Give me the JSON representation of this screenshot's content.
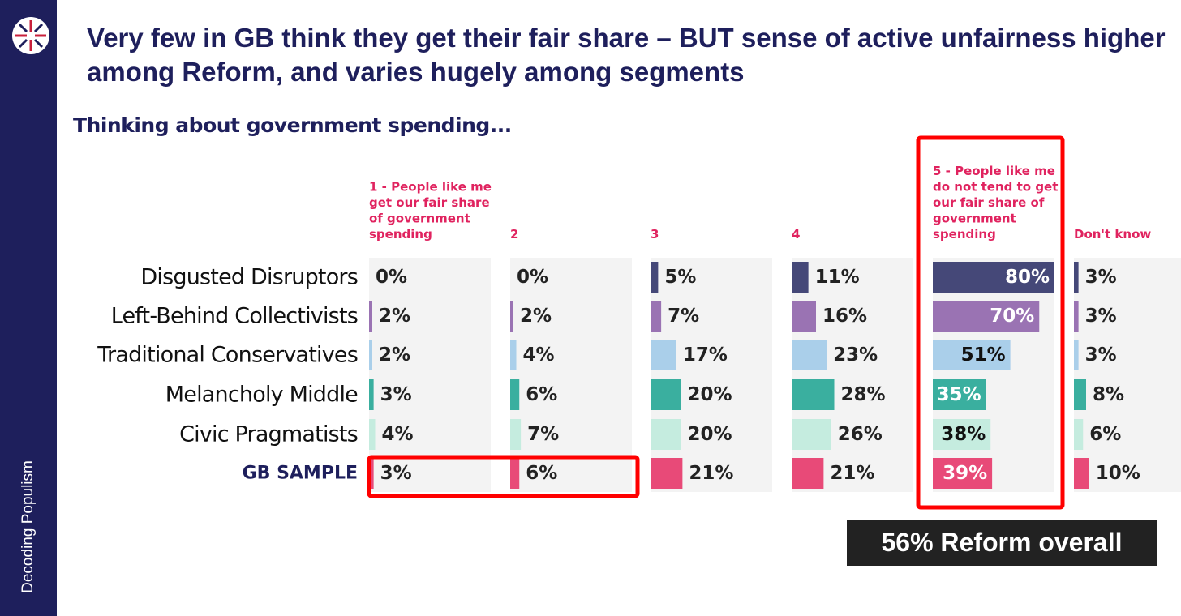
{
  "page": {
    "title": "Very few in GB think they get their fair share – BUT sense of active unfairness higher among Reform, and varies hugely among segments",
    "sidebar_label": "Decoding Populism",
    "subtitle": "Thinking about government spending...",
    "callout": "56% Reform overall"
  },
  "chart_data": {
    "type": "bar",
    "orientation": "horizontal",
    "layout": "small-multiples",
    "title": "Thinking about government spending...",
    "columns": [
      [
        "1 - People like me",
        "get our fair share",
        "of government",
        "spending"
      ],
      [
        "2"
      ],
      [
        "3"
      ],
      [
        "4"
      ],
      [
        "5 - People like me",
        "do not tend to get",
        "our fair share of",
        "government",
        "spending"
      ],
      [
        "Don't know"
      ]
    ],
    "rows": [
      "Disgusted Disruptors",
      "Left-Behind Collectivists",
      "Traditional Conservatives",
      "Melancholy Middle",
      "Civic Pragmatists",
      "GB SAMPLE"
    ],
    "values": [
      [
        0,
        0,
        5,
        11,
        80,
        3
      ],
      [
        2,
        2,
        7,
        16,
        70,
        3
      ],
      [
        2,
        4,
        17,
        23,
        51,
        3
      ],
      [
        3,
        6,
        20,
        28,
        35,
        8
      ],
      [
        4,
        7,
        20,
        26,
        38,
        6
      ],
      [
        3,
        6,
        21,
        21,
        39,
        10
      ]
    ],
    "labels": [
      [
        "0%",
        "0%",
        "5%",
        "11%",
        "80%",
        "3%"
      ],
      [
        "2%",
        "2%",
        "7%",
        "16%",
        "70%",
        "3%"
      ],
      [
        "2%",
        "4%",
        "17%",
        "23%",
        "51%",
        "3%"
      ],
      [
        "3%",
        "6%",
        "20%",
        "28%",
        "35%",
        "8%"
      ],
      [
        "4%",
        "7%",
        "20%",
        "26%",
        "38%",
        "6%"
      ],
      [
        "3%",
        "6%",
        "21%",
        "21%",
        "39%",
        "10%"
      ]
    ],
    "row_colors": [
      "#454878",
      "#9a73b3",
      "#aacfea",
      "#3aaf9f",
      "#c5ecdf",
      "#e84a78"
    ],
    "xlim": [
      0,
      80
    ],
    "highlighted": [
      "5 - People like me do not tend to get our fair share of government spending",
      "GB SAMPLE columns 1 and 2"
    ]
  }
}
